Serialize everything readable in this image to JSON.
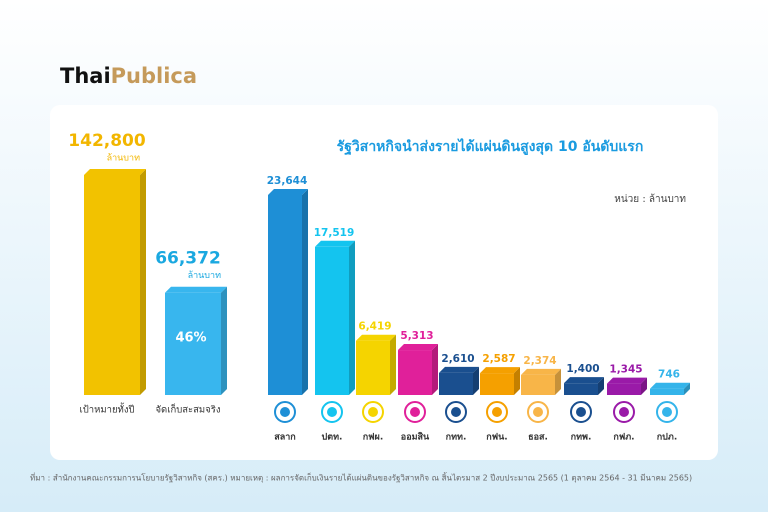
{
  "header": {
    "logo_a": "Thai",
    "logo_b": "Publica"
  },
  "chart_data": [
    {
      "type": "bar",
      "categories": [
        "เป้าหมายทั้งปี",
        "จัดเก็บสะสมจริง"
      ],
      "values": [
        142800,
        66372
      ],
      "value_labels": [
        "142,800",
        "66,372"
      ],
      "unit": "ล้านบาท",
      "colors": [
        "#f2c200",
        "#38b6ee"
      ],
      "label_colors": [
        "#f2b600",
        "#1aa8e0"
      ],
      "annotation": "46%"
    },
    {
      "type": "bar",
      "title": "รัฐวิสาหกิจนำส่งรายได้แผ่นดินสูงสุด 10 อันดับแรก",
      "unit_note": "หน่วย : ล้านบาท",
      "categories": [
        "สลาก",
        "ปตท.",
        "กฟผ.",
        "ออมสิน",
        "กทท.",
        "กฟน.",
        "ธอส.",
        "กทพ.",
        "กฟภ.",
        "กปภ."
      ],
      "values": [
        23644,
        17519,
        6419,
        5313,
        2610,
        2587,
        2374,
        1400,
        1345,
        746
      ],
      "value_labels": [
        "23,644",
        "17,519",
        "6,419",
        "5,313",
        "2,610",
        "2,587",
        "2,374",
        "1,400",
        "1,345",
        "746"
      ],
      "colors": [
        "#1e8fd6",
        "#14c4ef",
        "#f5d400",
        "#e0209a",
        "#1a4f8f",
        "#f5a000",
        "#f8b548",
        "#1a4f8f",
        "#9a1aa8",
        "#34b4ea"
      ]
    }
  ],
  "footer": {
    "source": "ที่มา : สำนักงานคณะกรรมการนโยบายรัฐวิสาหกิจ (สคร.)   หมายเหตุ : ผลการจัดเก็บเงินรายได้แผ่นดินของรัฐวิสาหกิจ ณ สิ้นไตรมาส 2 ปีงบประมาณ 2565 (1 ตุลาคม 2564 - 31 มีนาคม 2565)"
  }
}
